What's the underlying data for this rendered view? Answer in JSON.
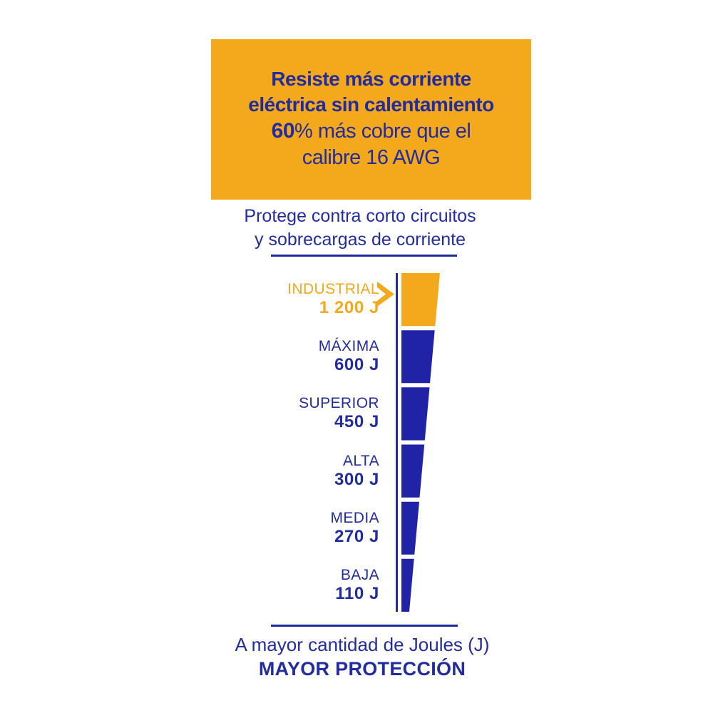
{
  "colors": {
    "orange": "#F4A81C",
    "blue": "#232C9E",
    "wedge_blue": "#2023A6",
    "background": "#FFFFFF"
  },
  "header_box": {
    "line1": "Resiste más corriente",
    "line2": "eléctrica sin calentamiento",
    "line3_bold": "60",
    "line3_rest": "% más cobre que el",
    "line4": "calibre 16 AWG"
  },
  "subtitle": {
    "line1": "Protege contra corto circuitos",
    "line2": "y sobrecargas de corriente"
  },
  "footer": {
    "line1": "A mayor cantidad de Joules (J)",
    "line2": "MAYOR PROTECCIÓN"
  },
  "chart_data": {
    "type": "bar",
    "variant": "vertical-tapered-funnel",
    "categories": [
      "INDUSTRIAL",
      "MÁXIMA",
      "SUPERIOR",
      "ALTA",
      "MEDIA",
      "BAJA"
    ],
    "values": [
      1200,
      600,
      450,
      300,
      270,
      110
    ],
    "value_labels": [
      "1 200 J",
      "600 J",
      "450 J",
      "300 J",
      "270 J",
      "110 J"
    ],
    "unit": "J",
    "highlight_index": 0,
    "highlight_color": "#F4A81C",
    "bar_color": "#2023A6",
    "axis": "vertical line on left of segments, labels right-aligned to the left",
    "legend": "none",
    "note": "segments equal height, wedge tapers narrower toward the bottom (lower Joules)"
  }
}
